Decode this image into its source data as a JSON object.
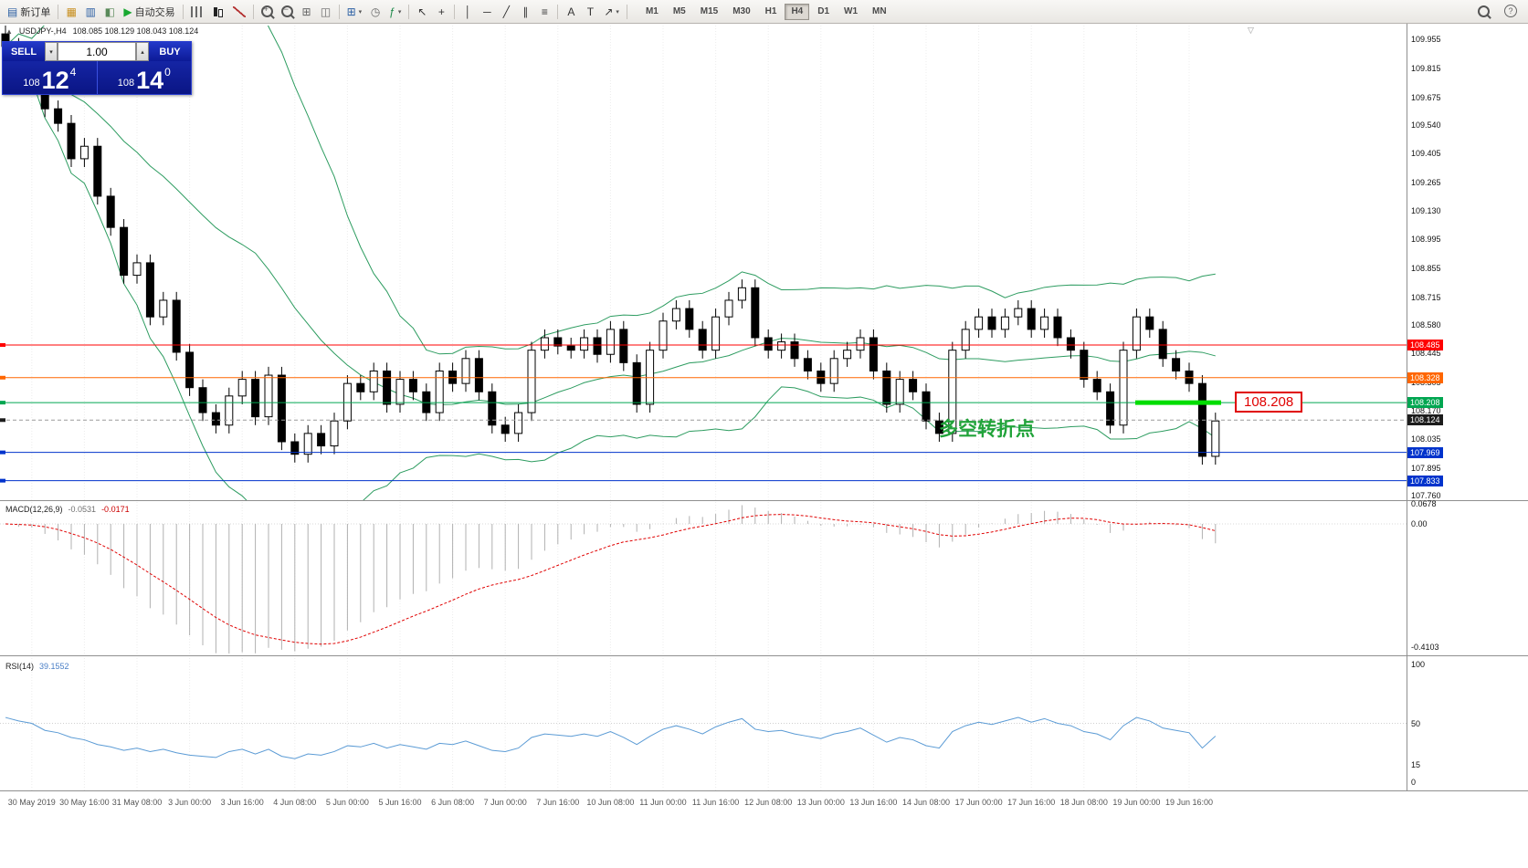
{
  "icons": {
    "caret_up": "▴",
    "caret_down": "▾",
    "panel_toggle": "▲",
    "chart_shift": "▽"
  },
  "toolbar": {
    "items": [
      {
        "name": "new-order",
        "glyph": "▤",
        "color": "#2b5fa3",
        "label": "新订单"
      },
      {
        "name": "sep"
      },
      {
        "name": "profiles",
        "glyph": "▦",
        "color": "#c89020"
      },
      {
        "name": "market-watch",
        "glyph": "▥",
        "color": "#2b5fa3"
      },
      {
        "name": "navigator",
        "glyph": "◧",
        "color": "#5a8a5a"
      },
      {
        "name": "autotrading",
        "glyph": "▶",
        "color": "#18a830",
        "label": "自动交易"
      },
      {
        "name": "sep"
      },
      {
        "name": "bar-chart"
      },
      {
        "name": "candle-chart"
      },
      {
        "name": "line-chart"
      },
      {
        "name": "sep"
      },
      {
        "name": "zoom-in"
      },
      {
        "name": "zoom-out"
      },
      {
        "name": "grid",
        "glyph": "⊞",
        "color": "#666666"
      },
      {
        "name": "tile-windows",
        "glyph": "◫",
        "color": "#666666"
      },
      {
        "name": "sep"
      },
      {
        "name": "new-chart",
        "glyph": "⊞",
        "color": "#2b5fa3",
        "caret": true
      },
      {
        "name": "clock",
        "glyph": "◷",
        "color": "#666666"
      },
      {
        "name": "indicators",
        "glyph": "ƒ",
        "color": "#1e8a4a",
        "caret": true
      },
      {
        "name": "sep"
      },
      {
        "name": "cursor",
        "glyph": "↖",
        "color": "#333333"
      },
      {
        "name": "crosshair",
        "glyph": "+",
        "color": "#333333"
      },
      {
        "name": "sep"
      },
      {
        "name": "vertical-line",
        "glyph": "│",
        "color": "#333333"
      },
      {
        "name": "horizontal-line",
        "glyph": "─",
        "color": "#333333"
      },
      {
        "name": "trendline",
        "glyph": "╱",
        "color": "#333333"
      },
      {
        "name": "channel",
        "glyph": "∥",
        "color": "#333333"
      },
      {
        "name": "fibonacci",
        "glyph": "≡",
        "color": "#333333"
      },
      {
        "name": "sep"
      },
      {
        "name": "text",
        "glyph": "A",
        "color": "#333333"
      },
      {
        "name": "text-label",
        "glyph": "T",
        "color": "#333333"
      },
      {
        "name": "arrows",
        "glyph": "↗",
        "color": "#333333",
        "caret": true
      },
      {
        "name": "sep"
      }
    ],
    "timeframes": [
      "M1",
      "M5",
      "M15",
      "M30",
      "H1",
      "H4",
      "D1",
      "W1",
      "MN"
    ],
    "active_timeframe": "H4"
  },
  "chart": {
    "symbol": "USDJPY-,H4",
    "ohlc_text": "108.085 108.129 108.043 108.124",
    "trade_panel": {
      "sell_label": "SELL",
      "buy_label": "BUY",
      "volume": "1.00",
      "sell_prefix": "108",
      "sell_main": "12",
      "sell_sup": "4",
      "buy_prefix": "108",
      "buy_main": "14",
      "buy_sup": "0"
    },
    "annotation": "多空转折点",
    "price_tag": "108.208",
    "hlines": [
      {
        "price": 108.485,
        "color": "#ff0000",
        "label": "108.485"
      },
      {
        "price": 108.328,
        "color": "#ff6600",
        "label": "108.328"
      },
      {
        "price": 108.208,
        "color": "#00a651",
        "label": "108.208"
      },
      {
        "price": 107.969,
        "color": "#0033cc",
        "label": "107.969"
      },
      {
        "price": 107.833,
        "color": "#0033cc",
        "label": "107.833"
      }
    ],
    "current_price": {
      "value": 108.124,
      "label": "108.124"
    },
    "scale_labels": [
      "109.955",
      "109.815",
      "109.675",
      "109.540",
      "109.405",
      "109.265",
      "109.130",
      "108.995",
      "108.855",
      "108.715",
      "108.580",
      "108.445",
      "108.305",
      "108.170",
      "108.035",
      "107.895",
      "107.760"
    ],
    "highlight_segment": {
      "price": 108.208,
      "color": "#00dd00"
    }
  },
  "macd": {
    "title": "MACD(12,26,9)",
    "value_main": "-0.0531",
    "value_signal": "-0.0171",
    "scale": [
      "0.0678",
      "0.00",
      "-0.4103"
    ]
  },
  "rsi": {
    "title": "RSI(14)",
    "value": "39.1552",
    "scale": [
      "100",
      "50",
      "15",
      "0"
    ]
  },
  "time_axis": [
    "30 May 2019",
    "30 May 16:00",
    "31 May 08:00",
    "3 Jun 00:00",
    "3 Jun 16:00",
    "4 Jun 08:00",
    "5 Jun 00:00",
    "5 Jun 16:00",
    "6 Jun 08:00",
    "7 Jun 00:00",
    "7 Jun 16:00",
    "10 Jun 08:00",
    "11 Jun 00:00",
    "11 Jun 16:00",
    "12 Jun 08:00",
    "13 Jun 00:00",
    "13 Jun 16:00",
    "14 Jun 08:00",
    "17 Jun 00:00",
    "17 Jun 16:00",
    "18 Jun 08:00",
    "19 Jun 00:00",
    "19 Jun 16:00"
  ],
  "chart_data": {
    "type": "candlestick+indicators",
    "symbol": "USDJPY",
    "timeframe": "H4",
    "indicators": [
      "Bollinger Bands(20,2)",
      "MACD(12,26,9)",
      "RSI(14)"
    ],
    "price_range": [
      107.76,
      109.955
    ],
    "first_open": 109.98,
    "closes": [
      109.92,
      109.8,
      109.86,
      109.62,
      109.55,
      109.38,
      109.44,
      109.2,
      109.05,
      108.82,
      108.88,
      108.62,
      108.7,
      108.45,
      108.28,
      108.16,
      108.1,
      108.24,
      108.32,
      108.14,
      108.34,
      108.02,
      107.96,
      108.06,
      108.0,
      108.12,
      108.3,
      108.26,
      108.36,
      108.2,
      108.32,
      108.26,
      108.16,
      108.36,
      108.3,
      108.42,
      108.26,
      108.1,
      108.06,
      108.16,
      108.46,
      108.52,
      108.48,
      108.46,
      108.52,
      108.44,
      108.56,
      108.4,
      108.2,
      108.46,
      108.6,
      108.66,
      108.56,
      108.46,
      108.62,
      108.7,
      108.76,
      108.52,
      108.46,
      108.5,
      108.42,
      108.36,
      108.3,
      108.42,
      108.46,
      108.52,
      108.36,
      108.2,
      108.32,
      108.26,
      108.12,
      108.06,
      108.46,
      108.56,
      108.62,
      108.56,
      108.62,
      108.66,
      108.56,
      108.62,
      108.52,
      108.46,
      108.32,
      108.26,
      108.1,
      108.46,
      108.62,
      108.56,
      108.42,
      108.36,
      108.3,
      107.95,
      108.12
    ],
    "rsi_series": [
      55,
      52,
      50,
      44,
      42,
      38,
      36,
      32,
      30,
      27,
      29,
      26,
      28,
      25,
      23,
      22,
      21,
      26,
      28,
      24,
      28,
      22,
      20,
      24,
      23,
      26,
      31,
      30,
      33,
      29,
      32,
      30,
      28,
      33,
      32,
      35,
      31,
      27,
      26,
      29,
      38,
      41,
      40,
      39,
      41,
      39,
      43,
      38,
      32,
      39,
      45,
      48,
      45,
      41,
      47,
      51,
      54,
      45,
      43,
      44,
      41,
      39,
      37,
      41,
      43,
      46,
      40,
      34,
      38,
      36,
      31,
      29,
      43,
      48,
      51,
      49,
      52,
      55,
      51,
      54,
      50,
      48,
      43,
      41,
      36,
      48,
      55,
      52,
      46,
      44,
      42,
      29,
      39.16
    ]
  }
}
